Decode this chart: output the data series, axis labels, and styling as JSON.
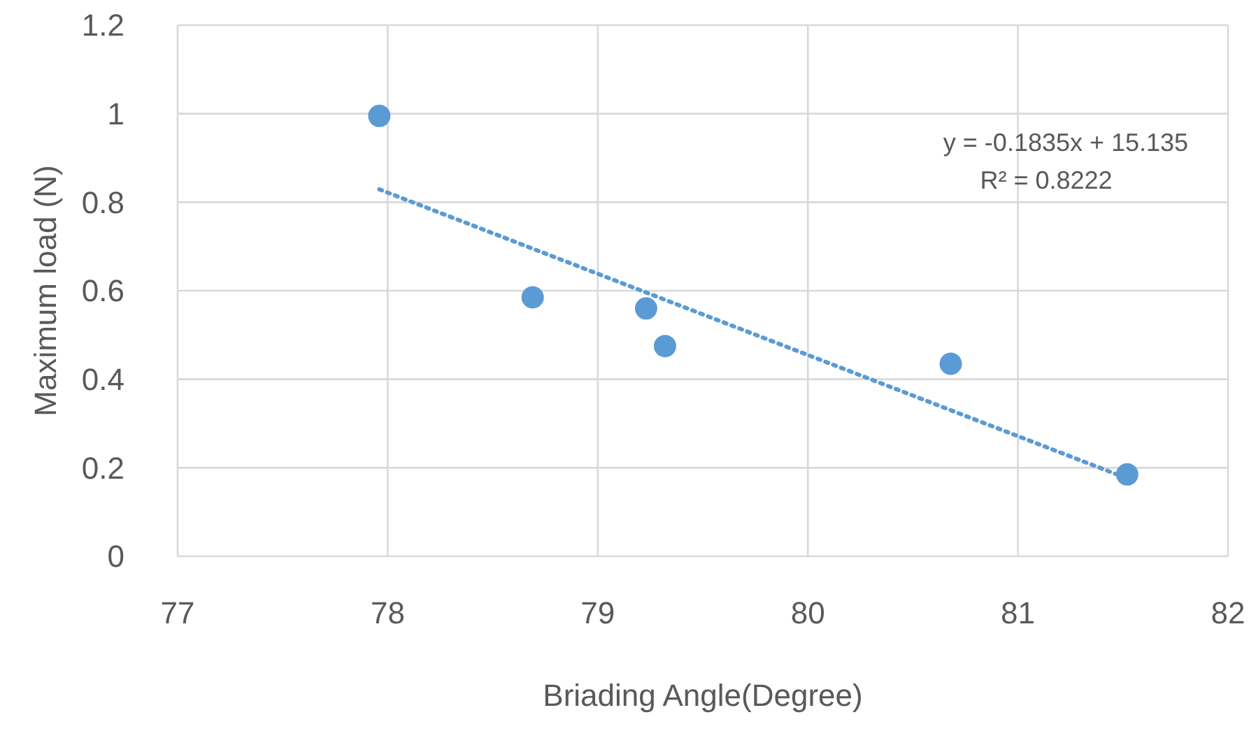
{
  "chart_data": {
    "type": "scatter",
    "xlabel": "Briading Angle(Degree)",
    "ylabel": "Maximum load (N)",
    "xlim": [
      77,
      82
    ],
    "xticks": [
      77,
      78,
      79,
      80,
      81,
      82
    ],
    "ylim": [
      0,
      1.2
    ],
    "yticks": [
      0,
      0.2,
      0.4,
      0.6,
      0.8,
      1,
      1.2
    ],
    "grid": true,
    "marker": "circle",
    "series": [
      {
        "type": "scatter",
        "color": "#5b9bd5",
        "x": [
          77.96,
          78.69,
          79.23,
          79.32,
          80.68,
          81.52
        ],
        "values": [
          0.995,
          0.585,
          0.56,
          0.475,
          0.435,
          0.185
        ]
      },
      {
        "type": "line",
        "color": "#5b9bd5",
        "line_style": "dotted",
        "marker": "none",
        "x": [
          77.96,
          81.52
        ],
        "values": [
          0.829,
          0.176
        ]
      }
    ],
    "annotations": [
      "y = -0.1835x + 15.135",
      "R² = 0.8222"
    ]
  }
}
